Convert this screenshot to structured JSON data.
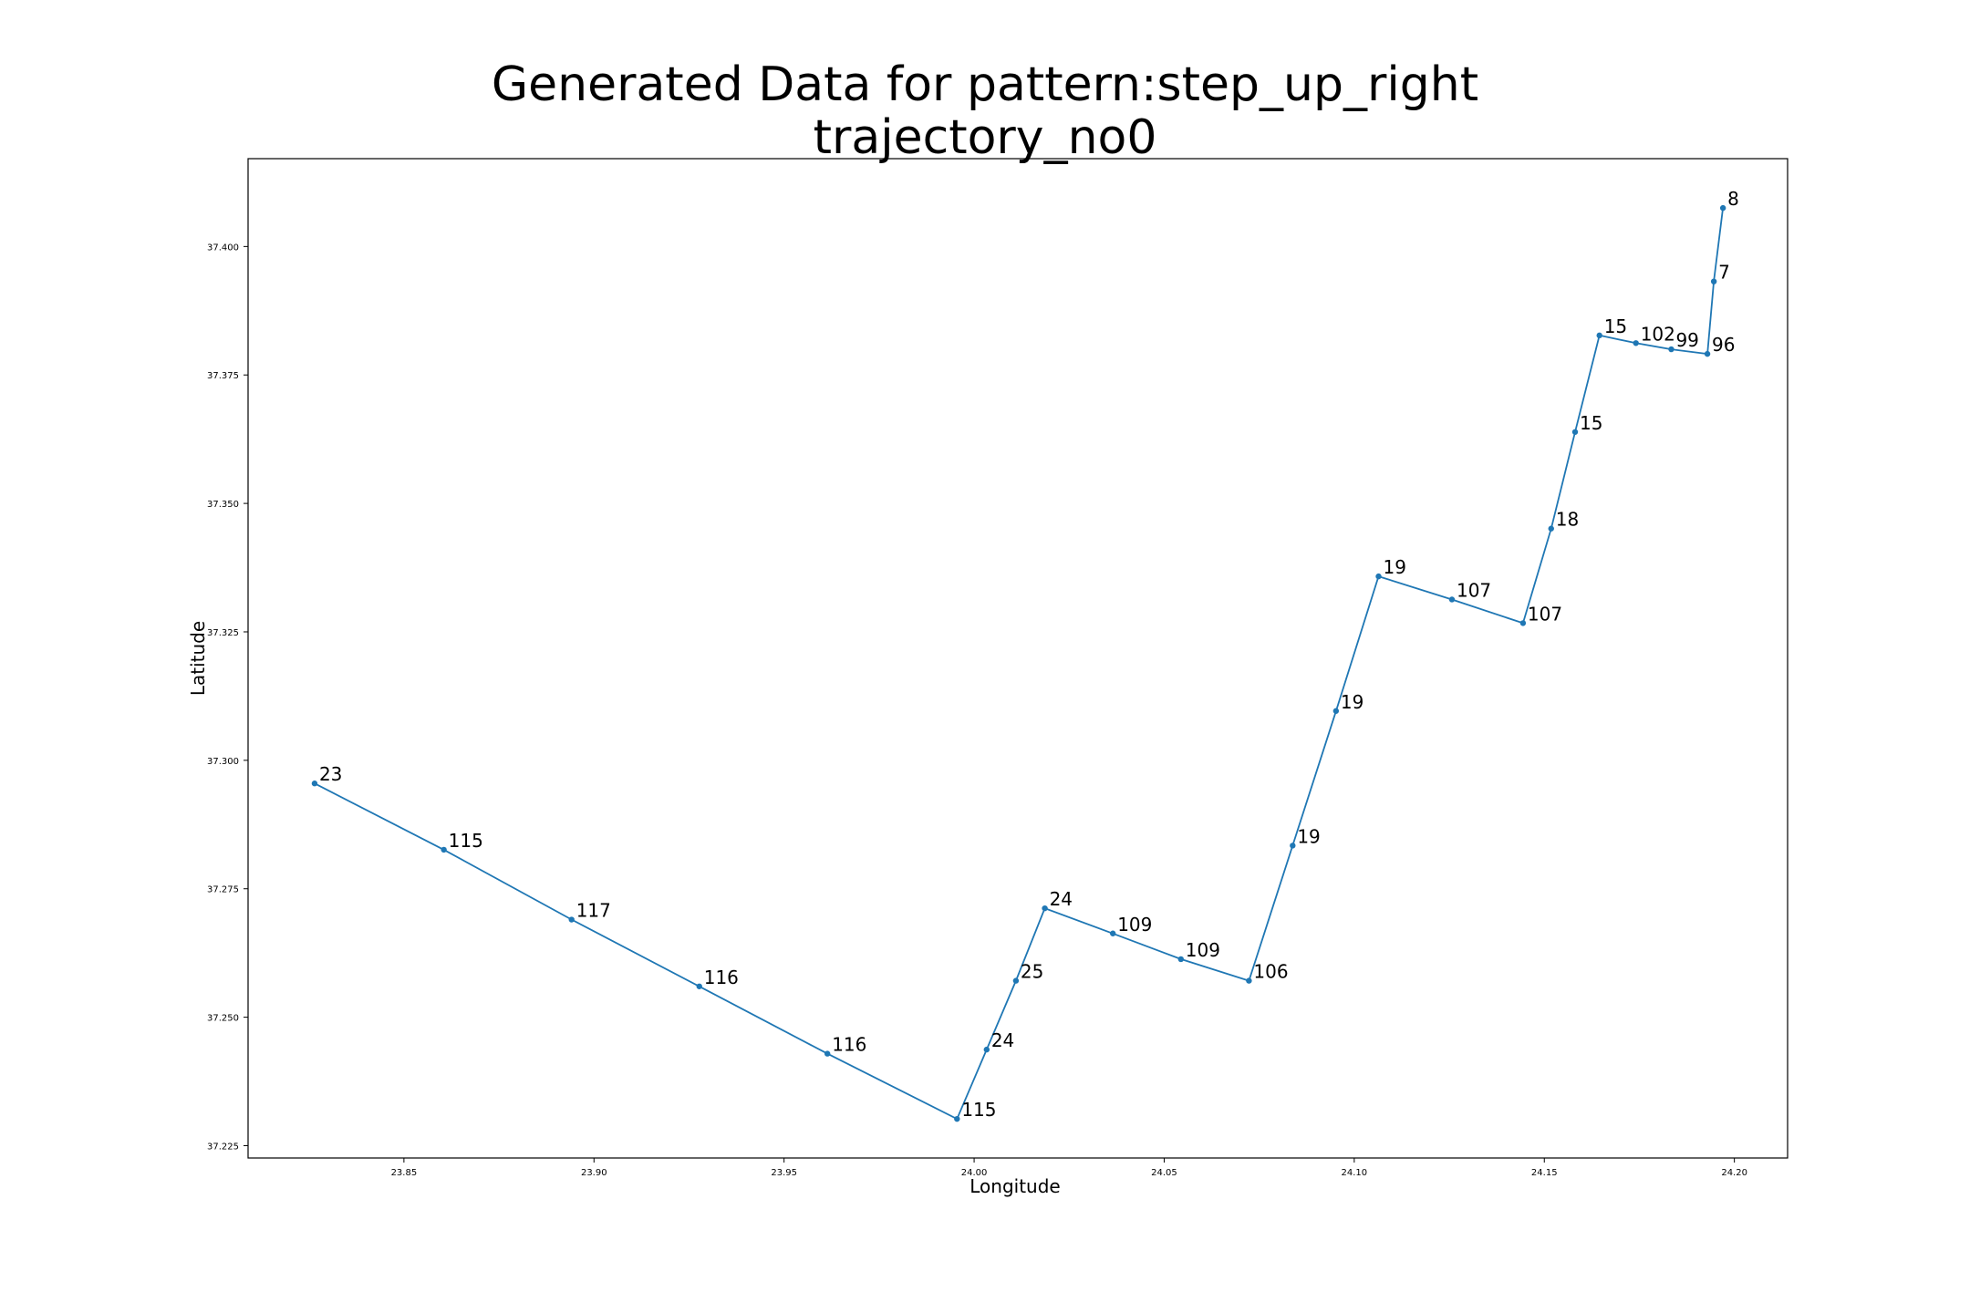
{
  "chart_data": {
    "type": "line",
    "title_line1": "Generated Data for pattern:step_up_right",
    "title_line2": "trajectory_no0",
    "xlabel": "Longitude",
    "ylabel": "Latitude",
    "xlim": [
      23.809,
      24.214
    ],
    "ylim": [
      37.2226,
      37.4171
    ],
    "xticks": [
      "23.85",
      "23.90",
      "23.95",
      "24.00",
      "24.05",
      "24.10",
      "24.15",
      "24.20"
    ],
    "yticks": [
      "37.225",
      "37.250",
      "37.275",
      "37.300",
      "37.325",
      "37.350",
      "37.375",
      "37.400"
    ],
    "grid": false,
    "legend": "none",
    "line_color": "#1f77b4",
    "series": [
      {
        "points": [
          {
            "x": 23.8265,
            "y": 37.2955,
            "label": "23"
          },
          {
            "x": 23.8605,
            "y": 37.2826,
            "label": "115"
          },
          {
            "x": 23.8941,
            "y": 37.269,
            "label": "117"
          },
          {
            "x": 23.9277,
            "y": 37.256,
            "label": "116"
          },
          {
            "x": 23.9614,
            "y": 37.2429,
            "label": "116"
          },
          {
            "x": 23.9955,
            "y": 37.2302,
            "label": "115"
          },
          {
            "x": 24.0033,
            "y": 37.2437,
            "label": "24"
          },
          {
            "x": 24.011,
            "y": 37.2571,
            "label": "25"
          },
          {
            "x": 24.0186,
            "y": 37.2712,
            "label": "24"
          },
          {
            "x": 24.0365,
            "y": 37.2663,
            "label": "109"
          },
          {
            "x": 24.0544,
            "y": 37.2613,
            "label": "109"
          },
          {
            "x": 24.0723,
            "y": 37.2571,
            "label": "106"
          },
          {
            "x": 24.0838,
            "y": 37.2834,
            "label": "19"
          },
          {
            "x": 24.0952,
            "y": 37.3096,
            "label": "19"
          },
          {
            "x": 24.1064,
            "y": 37.3358,
            "label": "19"
          },
          {
            "x": 24.1257,
            "y": 37.3313,
            "label": "107"
          },
          {
            "x": 24.1444,
            "y": 37.3267,
            "label": "107"
          },
          {
            "x": 24.1518,
            "y": 37.3451,
            "label": "18"
          },
          {
            "x": 24.1581,
            "y": 37.3639,
            "label": "15"
          },
          {
            "x": 24.1645,
            "y": 37.3827,
            "label": "15"
          },
          {
            "x": 24.1741,
            "y": 37.3812,
            "label": "102"
          },
          {
            "x": 24.1834,
            "y": 37.38,
            "label": "99"
          },
          {
            "x": 24.1929,
            "y": 37.3791,
            "label": "96"
          },
          {
            "x": 24.1946,
            "y": 37.3932,
            "label": "7"
          },
          {
            "x": 24.197,
            "y": 37.4075,
            "label": "8"
          }
        ]
      }
    ]
  }
}
